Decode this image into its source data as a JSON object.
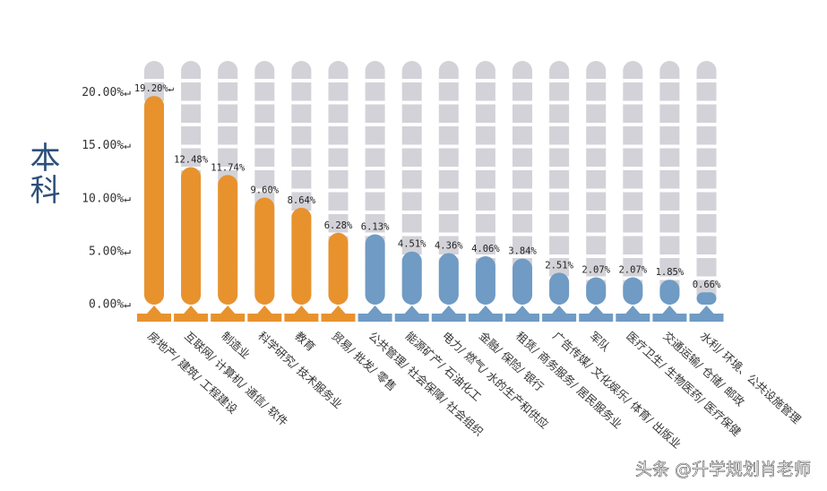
{
  "chart_data": {
    "type": "bar",
    "y_title": "本科",
    "watermark": "头条 @升学规划肖老师",
    "categories": [
      "房地产/ 建筑/ 工程建设",
      "互联网/ 计算机/ 通信/ 软件",
      "制造业",
      "科学研究/ 技术服务业",
      "教育",
      "贸易/ 批发/ 零售",
      "公共管理/ 社会保障/ 社会组织",
      "能源矿产/ 石油化工",
      "电力/ 燃气/ 水的生产和供应",
      "金融/ 保险/ 银行",
      "租赁/ 商务服务/ 居民服务业",
      "广告传媒/ 文化娱乐/ 体育/ 出版业",
      "军队",
      "医疗卫生/ 生物医药/ 医疗保健",
      "交通运输/ 仓储/ 邮政",
      "水利/ 环境、公共设施管理"
    ],
    "values": [
      19.2,
      12.48,
      11.74,
      9.6,
      8.64,
      6.28,
      6.13,
      4.51,
      4.36,
      4.06,
      3.84,
      2.51,
      2.07,
      2.07,
      1.85,
      0.66
    ],
    "value_labels": [
      "19.20%↵",
      "12.48%",
      "11.74%",
      "9.60%",
      "8.64%",
      "6.28%",
      "6.13%",
      "4.51%",
      "4.36%",
      "4.06%",
      "3.84%",
      "2.51%",
      "2.07%",
      "2.07%",
      "1.85%",
      "0.66%"
    ],
    "colors": [
      "#e8922e",
      "#e8922e",
      "#e8922e",
      "#e8922e",
      "#e8922e",
      "#e8922e",
      "#6f9bc4",
      "#6f9bc4",
      "#6f9bc4",
      "#6f9bc4",
      "#6f9bc4",
      "#6f9bc4",
      "#6f9bc4",
      "#6f9bc4",
      "#6f9bc4",
      "#6f9bc4"
    ],
    "ylim": [
      0,
      22
    ],
    "yticks": [
      {
        "value": 0,
        "label": "0.00%↵"
      },
      {
        "value": 5,
        "label": "5.00%↵"
      },
      {
        "value": 10,
        "label": "10.00%↵"
      },
      {
        "value": 15,
        "label": "15.00%↵"
      },
      {
        "value": 20,
        "label": "20.00%↵"
      }
    ]
  }
}
